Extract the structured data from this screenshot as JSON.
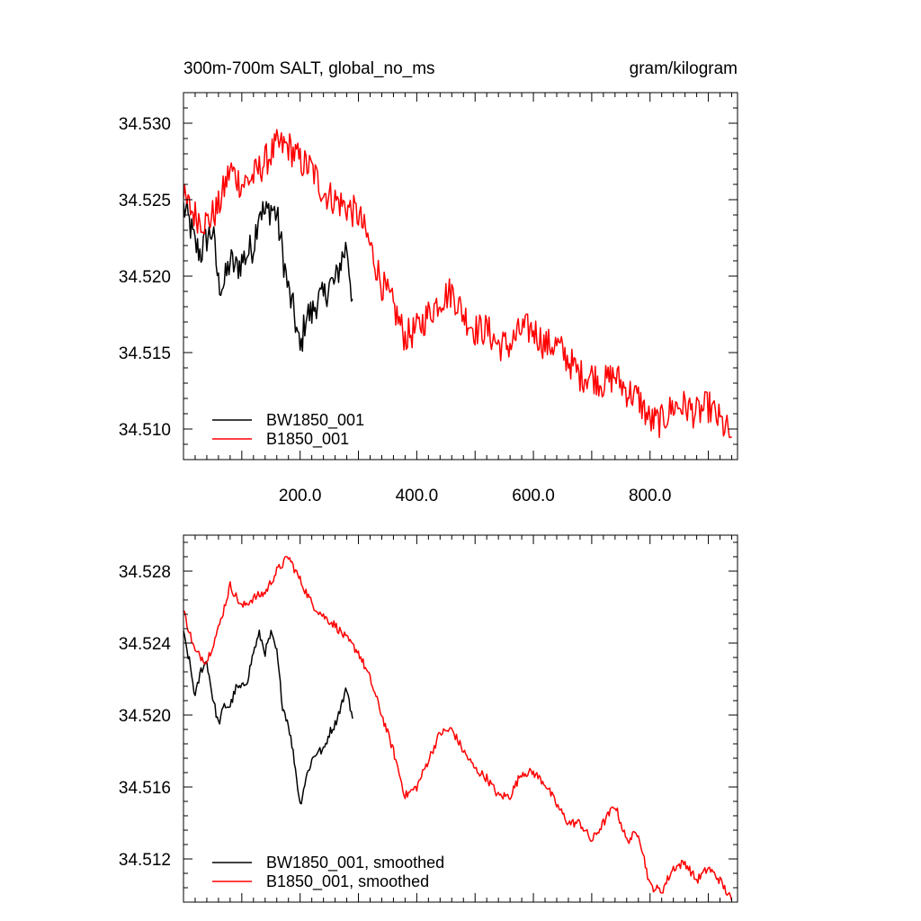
{
  "header": {
    "left_title": "300m-700m SALT, global_no_ms",
    "right_title": "gram/kilogram"
  },
  "colors": {
    "bw": "#000000",
    "b": "#ff0000",
    "axis": "#000000"
  },
  "chart_data": [
    {
      "type": "line",
      "title": "300m-700m SALT, global_no_ms",
      "units": "gram/kilogram",
      "xlim": [
        0,
        950
      ],
      "ylim": [
        34.508,
        34.532
      ],
      "x_ticks": [
        200,
        400,
        600,
        800
      ],
      "x_tick_labels": [
        "200.0",
        "400.0",
        "600.0",
        "800.0"
      ],
      "y_ticks": [
        34.51,
        34.515,
        34.52,
        34.525,
        34.53
      ],
      "y_tick_labels": [
        "34.510",
        "34.515",
        "34.520",
        "34.525",
        "34.530"
      ],
      "legend_position": "bottom-left",
      "series": [
        {
          "name": "BW1850_001",
          "color": "#000000",
          "noise": 0.0011,
          "x": [
            0,
            10,
            20,
            30,
            40,
            50,
            60,
            70,
            80,
            90,
            100,
            110,
            120,
            130,
            140,
            150,
            160,
            170,
            180,
            190,
            200,
            210,
            220,
            230,
            240,
            250,
            260,
            270,
            280,
            290
          ],
          "values": [
            34.5245,
            34.5235,
            34.522,
            34.5215,
            34.5225,
            34.523,
            34.5195,
            34.5195,
            34.521,
            34.5205,
            34.521,
            34.5215,
            34.522,
            34.5245,
            34.524,
            34.5245,
            34.524,
            34.5215,
            34.519,
            34.5175,
            34.515,
            34.5175,
            34.5175,
            34.5185,
            34.5185,
            34.5195,
            34.5195,
            34.521,
            34.522,
            34.5185
          ]
        },
        {
          "name": "B1850_001",
          "color": "#ff0000",
          "noise": 0.0011,
          "x": [
            0,
            20,
            40,
            60,
            80,
            100,
            120,
            140,
            160,
            180,
            200,
            220,
            240,
            260,
            280,
            300,
            320,
            340,
            360,
            380,
            400,
            420,
            440,
            460,
            480,
            500,
            520,
            540,
            560,
            580,
            600,
            620,
            640,
            660,
            680,
            700,
            720,
            740,
            760,
            780,
            800,
            820,
            840,
            860,
            880,
            900,
            920,
            940
          ],
          "values": [
            34.525,
            34.524,
            34.5235,
            34.5245,
            34.527,
            34.526,
            34.5265,
            34.5275,
            34.5285,
            34.5285,
            34.5275,
            34.527,
            34.5255,
            34.525,
            34.5245,
            34.524,
            34.522,
            34.5195,
            34.518,
            34.516,
            34.5165,
            34.5175,
            34.5185,
            34.519,
            34.5175,
            34.5165,
            34.5165,
            34.5155,
            34.5155,
            34.5165,
            34.5165,
            34.5155,
            34.5155,
            34.5145,
            34.5135,
            34.5135,
            34.513,
            34.5135,
            34.5125,
            34.512,
            34.5105,
            34.5105,
            34.5115,
            34.5115,
            34.511,
            34.5115,
            34.5105,
            34.5095
          ]
        }
      ]
    },
    {
      "type": "line",
      "xlim": [
        0,
        950
      ],
      "ylim": [
        34.5096,
        34.53
      ],
      "y_ticks": [
        34.512,
        34.516,
        34.52,
        34.524,
        34.528
      ],
      "y_tick_labels": [
        "34.512",
        "34.516",
        "34.520",
        "34.524",
        "34.528"
      ],
      "legend_position": "bottom-left",
      "series": [
        {
          "name": "BW1850_001, smoothed",
          "color": "#000000",
          "noise": 0.00025,
          "x": [
            0,
            10,
            20,
            30,
            40,
            50,
            60,
            70,
            80,
            90,
            100,
            110,
            120,
            130,
            140,
            150,
            160,
            170,
            180,
            190,
            200,
            210,
            220,
            230,
            240,
            250,
            260,
            270,
            280,
            290
          ],
          "values": [
            34.5245,
            34.523,
            34.521,
            34.5225,
            34.523,
            34.521,
            34.5195,
            34.5205,
            34.5205,
            34.5215,
            34.5215,
            34.522,
            34.5235,
            34.5245,
            34.5235,
            34.5245,
            34.5235,
            34.5205,
            34.5195,
            34.5175,
            34.515,
            34.5165,
            34.5175,
            34.518,
            34.518,
            34.519,
            34.5195,
            34.5205,
            34.5215,
            34.5198
          ]
        },
        {
          "name": "B1850_001, smoothed",
          "color": "#ff0000",
          "noise": 0.00025,
          "x": [
            0,
            20,
            40,
            60,
            80,
            100,
            120,
            140,
            160,
            180,
            200,
            220,
            240,
            260,
            280,
            300,
            320,
            340,
            360,
            380,
            400,
            420,
            440,
            460,
            480,
            500,
            520,
            540,
            560,
            580,
            600,
            620,
            640,
            660,
            680,
            700,
            720,
            740,
            760,
            780,
            800,
            820,
            840,
            860,
            880,
            900,
            920,
            940
          ],
          "values": [
            34.5258,
            34.5235,
            34.523,
            34.5248,
            34.5272,
            34.526,
            34.5265,
            34.5268,
            34.528,
            34.5288,
            34.5275,
            34.5262,
            34.5255,
            34.525,
            34.5242,
            34.5235,
            34.522,
            34.52,
            34.518,
            34.5155,
            34.516,
            34.5175,
            34.519,
            34.5192,
            34.518,
            34.517,
            34.5165,
            34.5155,
            34.5155,
            34.5168,
            34.5168,
            34.5162,
            34.515,
            34.514,
            34.514,
            34.513,
            34.514,
            34.515,
            34.513,
            34.5135,
            34.5105,
            34.5102,
            34.5115,
            34.5118,
            34.5108,
            34.5115,
            34.5108,
            34.5097
          ]
        }
      ]
    }
  ]
}
